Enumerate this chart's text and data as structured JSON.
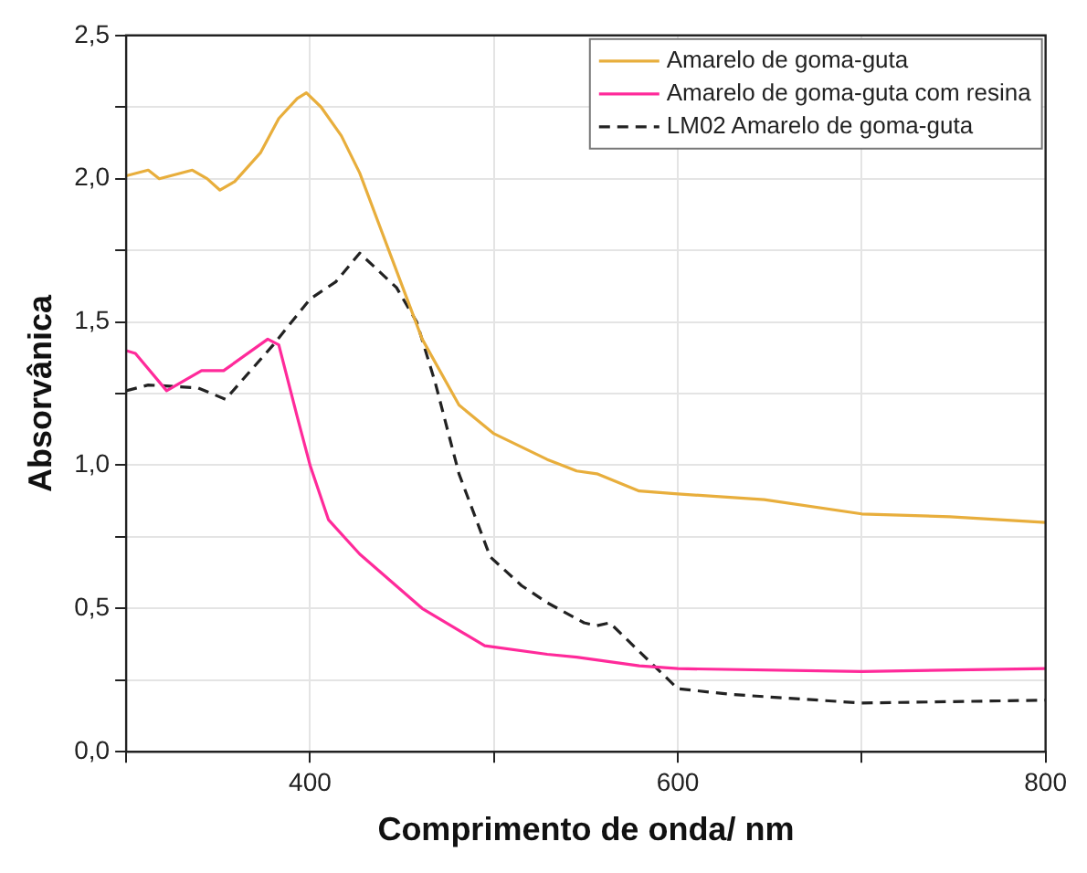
{
  "chart_data": {
    "type": "line",
    "xlabel": "Comprimento de onda/ nm",
    "ylabel": "Absorvânica",
    "xlim": [
      300,
      800
    ],
    "ylim": [
      0,
      2.5
    ],
    "xticks": [
      {
        "value": 300,
        "label": null
      },
      400,
      {
        "value": 500,
        "label": null
      },
      600,
      {
        "value": 700,
        "label": null
      },
      800
    ],
    "yticks": [
      {
        "value": 0,
        "label": "0,0"
      },
      {
        "value": 0.25,
        "label": null
      },
      {
        "value": 0.5,
        "label": "0,5"
      },
      {
        "value": 0.75,
        "label": null
      },
      {
        "value": 1,
        "label": "1,0"
      },
      {
        "value": 1.25,
        "label": null
      },
      {
        "value": 1.5,
        "label": "1,5"
      },
      {
        "value": 1.75,
        "label": null
      },
      {
        "value": 2,
        "label": "2,0"
      },
      {
        "value": 2.25,
        "label": null
      },
      {
        "value": 2.5,
        "label": "2,5"
      }
    ],
    "grid": true,
    "legend": "top right",
    "marker": "none",
    "series": [
      {
        "name": "Amarelo de goma-guta",
        "color": "#e8ae3c",
        "line_style": "solid",
        "x": [
          300,
          312,
          318,
          336,
          344,
          351,
          359,
          373,
          383,
          393,
          398,
          406,
          417,
          427,
          444,
          461,
          481,
          500,
          529,
          545,
          556,
          579,
          600,
          647,
          700,
          748,
          800
        ],
        "values": [
          2.01,
          2.03,
          2.0,
          2.03,
          2.0,
          1.96,
          1.99,
          2.09,
          2.21,
          2.28,
          2.3,
          2.25,
          2.15,
          2.02,
          1.73,
          1.44,
          1.21,
          1.11,
          1.02,
          0.98,
          0.97,
          0.91,
          0.9,
          0.88,
          0.83,
          0.82,
          0.8
        ]
      },
      {
        "name": "Amarelo de goma-guta com resina",
        "color": "#ff2a9a",
        "line_style": "solid",
        "x": [
          300,
          305,
          322,
          341,
          353,
          377,
          383,
          393,
          400,
          410,
          427,
          461,
          495,
          529,
          545,
          579,
          600,
          700,
          800
        ],
        "values": [
          1.4,
          1.39,
          1.26,
          1.33,
          1.33,
          1.44,
          1.42,
          1.17,
          1.0,
          0.81,
          0.69,
          0.5,
          0.37,
          0.34,
          0.33,
          0.3,
          0.29,
          0.28,
          0.29
        ]
      },
      {
        "name": "LM02 Amarelo de goma-guta",
        "color": "#222222",
        "line_style": "dashed",
        "x": [
          300,
          312,
          339,
          354,
          380,
          400,
          414,
          427,
          447,
          458,
          468,
          481,
          498,
          515,
          529,
          549,
          556,
          563,
          579,
          600,
          629,
          700,
          800
        ],
        "values": [
          1.26,
          1.28,
          1.27,
          1.23,
          1.42,
          1.58,
          1.64,
          1.74,
          1.62,
          1.5,
          1.29,
          0.97,
          0.68,
          0.58,
          0.52,
          0.45,
          0.44,
          0.45,
          0.35,
          0.22,
          0.2,
          0.17,
          0.18
        ]
      }
    ]
  }
}
